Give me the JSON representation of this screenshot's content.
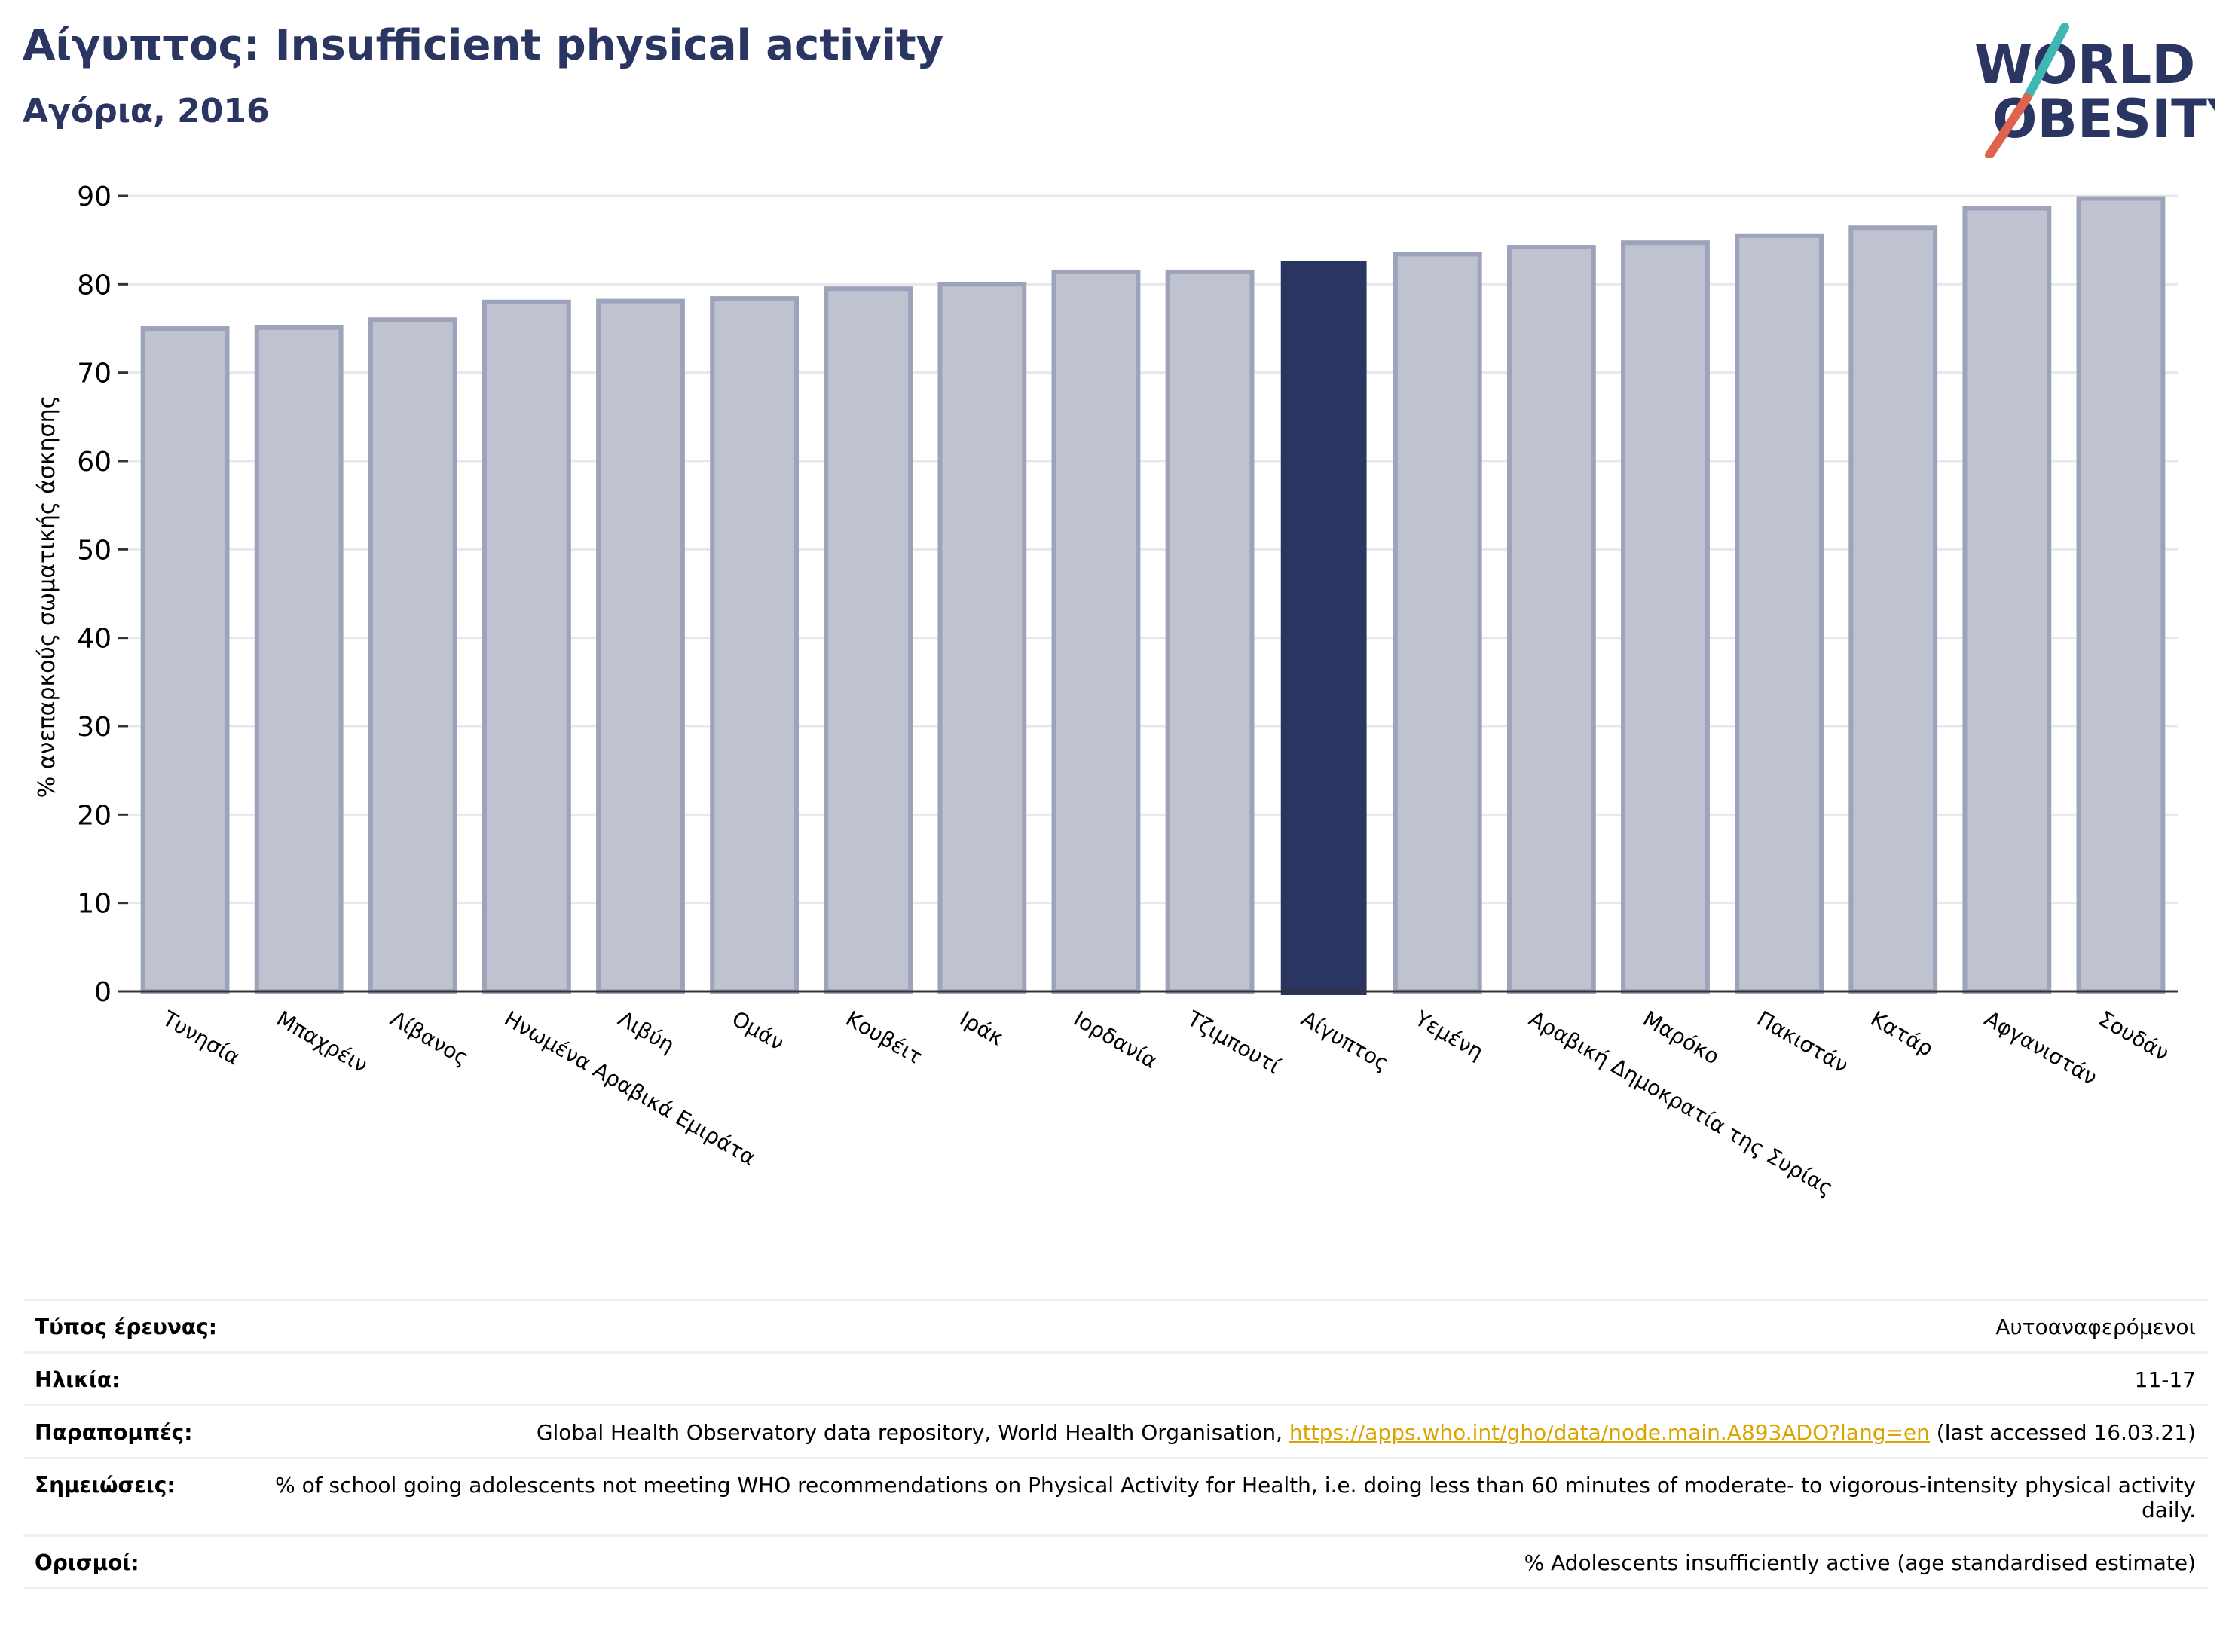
{
  "header": {
    "title": "Αίγυπτος: Insufficient physical activity",
    "subtitle": "Αγόρια, 2016"
  },
  "logo": {
    "line1": "WORLD",
    "line2": "OBESITY",
    "colors": {
      "text": "#2b3562",
      "slash_teal": "#3fb8b3",
      "slash_red": "#e0634f"
    }
  },
  "chart_data": {
    "type": "bar",
    "ylabel": "% ανεπαρκούς σωματικής άσκησης",
    "ylim": [
      0,
      90
    ],
    "yticks": [
      0,
      10,
      20,
      30,
      40,
      50,
      60,
      70,
      80,
      90
    ],
    "grid": true,
    "categories": [
      "Τυνησία",
      "Μπαχρέιν",
      "Λίβανος",
      "Ηνωμένα Αραβικά Εμιράτα",
      "Λιβύη",
      "Ομάν",
      "Κουβέιτ",
      "Ιράκ",
      "Ιορδανία",
      "Τζιμπουτί",
      "Αίγυπτος",
      "Υεμένη",
      "Αραβική Δημοκρατία της Συρίας",
      "Μαρόκο",
      "Πακιστάν",
      "Κατάρ",
      "Αφγανιστάν",
      "Σουδάν"
    ],
    "values": [
      75.0,
      75.1,
      76.0,
      78.0,
      78.1,
      78.4,
      79.5,
      80.0,
      81.4,
      81.4,
      82.5,
      83.4,
      84.2,
      84.7,
      85.5,
      86.4,
      88.6,
      89.7
    ],
    "highlight": "Αίγυπτος",
    "colors": {
      "bar": "#bfc2cf",
      "bar_edge": "#9da3ba",
      "highlight": "#2b3562"
    }
  },
  "info": {
    "survey_label": "Τύπος έρευνας:",
    "survey_value": "Αυτοαναφερόμενοι",
    "age_label": "Ηλικία:",
    "age_value": "11-17",
    "refs_label": "Παραπομπές:",
    "refs_text": "Global Health Observatory data repository, World Health Organisation, ",
    "refs_link": "https://apps.who.int/gho/data/node.main.A893ADO?lang=en",
    "refs_suffix": " (last accessed 16.03.21)",
    "notes_label": "Σημειώσεις:",
    "notes_value": "% of school going adolescents not meeting WHO recommendations on Physical Activity for Health, i.e. doing less than 60 minutes of moderate- to vigorous-intensity physical activity daily.",
    "defs_label": "Ορισμοί:",
    "defs_value": "% Adolescents insufficiently active (age standardised estimate)"
  }
}
